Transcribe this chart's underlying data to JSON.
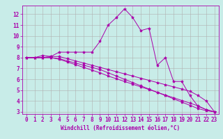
{
  "xlabel": "Windchill (Refroidissement éolien,°C)",
  "background_color": "#c8ece8",
  "grid_color": "#b0b0b0",
  "line_color": "#aa00aa",
  "x": [
    0,
    1,
    2,
    3,
    4,
    5,
    6,
    7,
    8,
    9,
    10,
    11,
    12,
    13,
    14,
    15,
    16,
    17,
    18,
    19,
    20,
    21,
    22,
    23
  ],
  "series1": [
    8.0,
    8.0,
    8.2,
    8.1,
    8.5,
    8.5,
    8.5,
    8.5,
    8.5,
    9.5,
    11.0,
    11.7,
    12.5,
    11.7,
    10.5,
    10.7,
    7.3,
    8.0,
    5.8,
    5.8,
    4.5,
    3.5,
    3.2,
    3.0
  ],
  "series2": [
    8.0,
    8.0,
    8.0,
    8.1,
    8.1,
    7.9,
    7.7,
    7.5,
    7.3,
    7.1,
    6.9,
    6.7,
    6.5,
    6.3,
    6.1,
    5.9,
    5.7,
    5.5,
    5.3,
    5.1,
    4.9,
    4.5,
    4.0,
    3.0
  ],
  "series3": [
    8.0,
    8.0,
    8.0,
    8.0,
    7.9,
    7.7,
    7.5,
    7.3,
    7.1,
    6.9,
    6.6,
    6.3,
    6.0,
    5.7,
    5.4,
    5.1,
    4.8,
    4.5,
    4.2,
    3.9,
    3.6,
    3.3,
    3.1,
    3.0
  ],
  "series4": [
    8.0,
    8.0,
    8.0,
    8.0,
    7.85,
    7.6,
    7.35,
    7.1,
    6.85,
    6.6,
    6.3,
    6.05,
    5.8,
    5.55,
    5.3,
    5.05,
    4.8,
    4.55,
    4.3,
    4.05,
    3.8,
    3.55,
    3.2,
    3.0
  ],
  "ylim": [
    2.8,
    12.8
  ],
  "xlim": [
    -0.5,
    23.5
  ],
  "yticks": [
    3,
    4,
    5,
    6,
    7,
    8,
    9,
    10,
    11,
    12
  ],
  "xticks": [
    0,
    1,
    2,
    3,
    4,
    5,
    6,
    7,
    8,
    9,
    10,
    11,
    12,
    13,
    14,
    15,
    16,
    17,
    18,
    19,
    20,
    21,
    22,
    23
  ],
  "marker": "*",
  "markersize": 3,
  "linewidth": 0.7,
  "tick_fontsize": 5.5,
  "xlabel_fontsize": 5.5
}
